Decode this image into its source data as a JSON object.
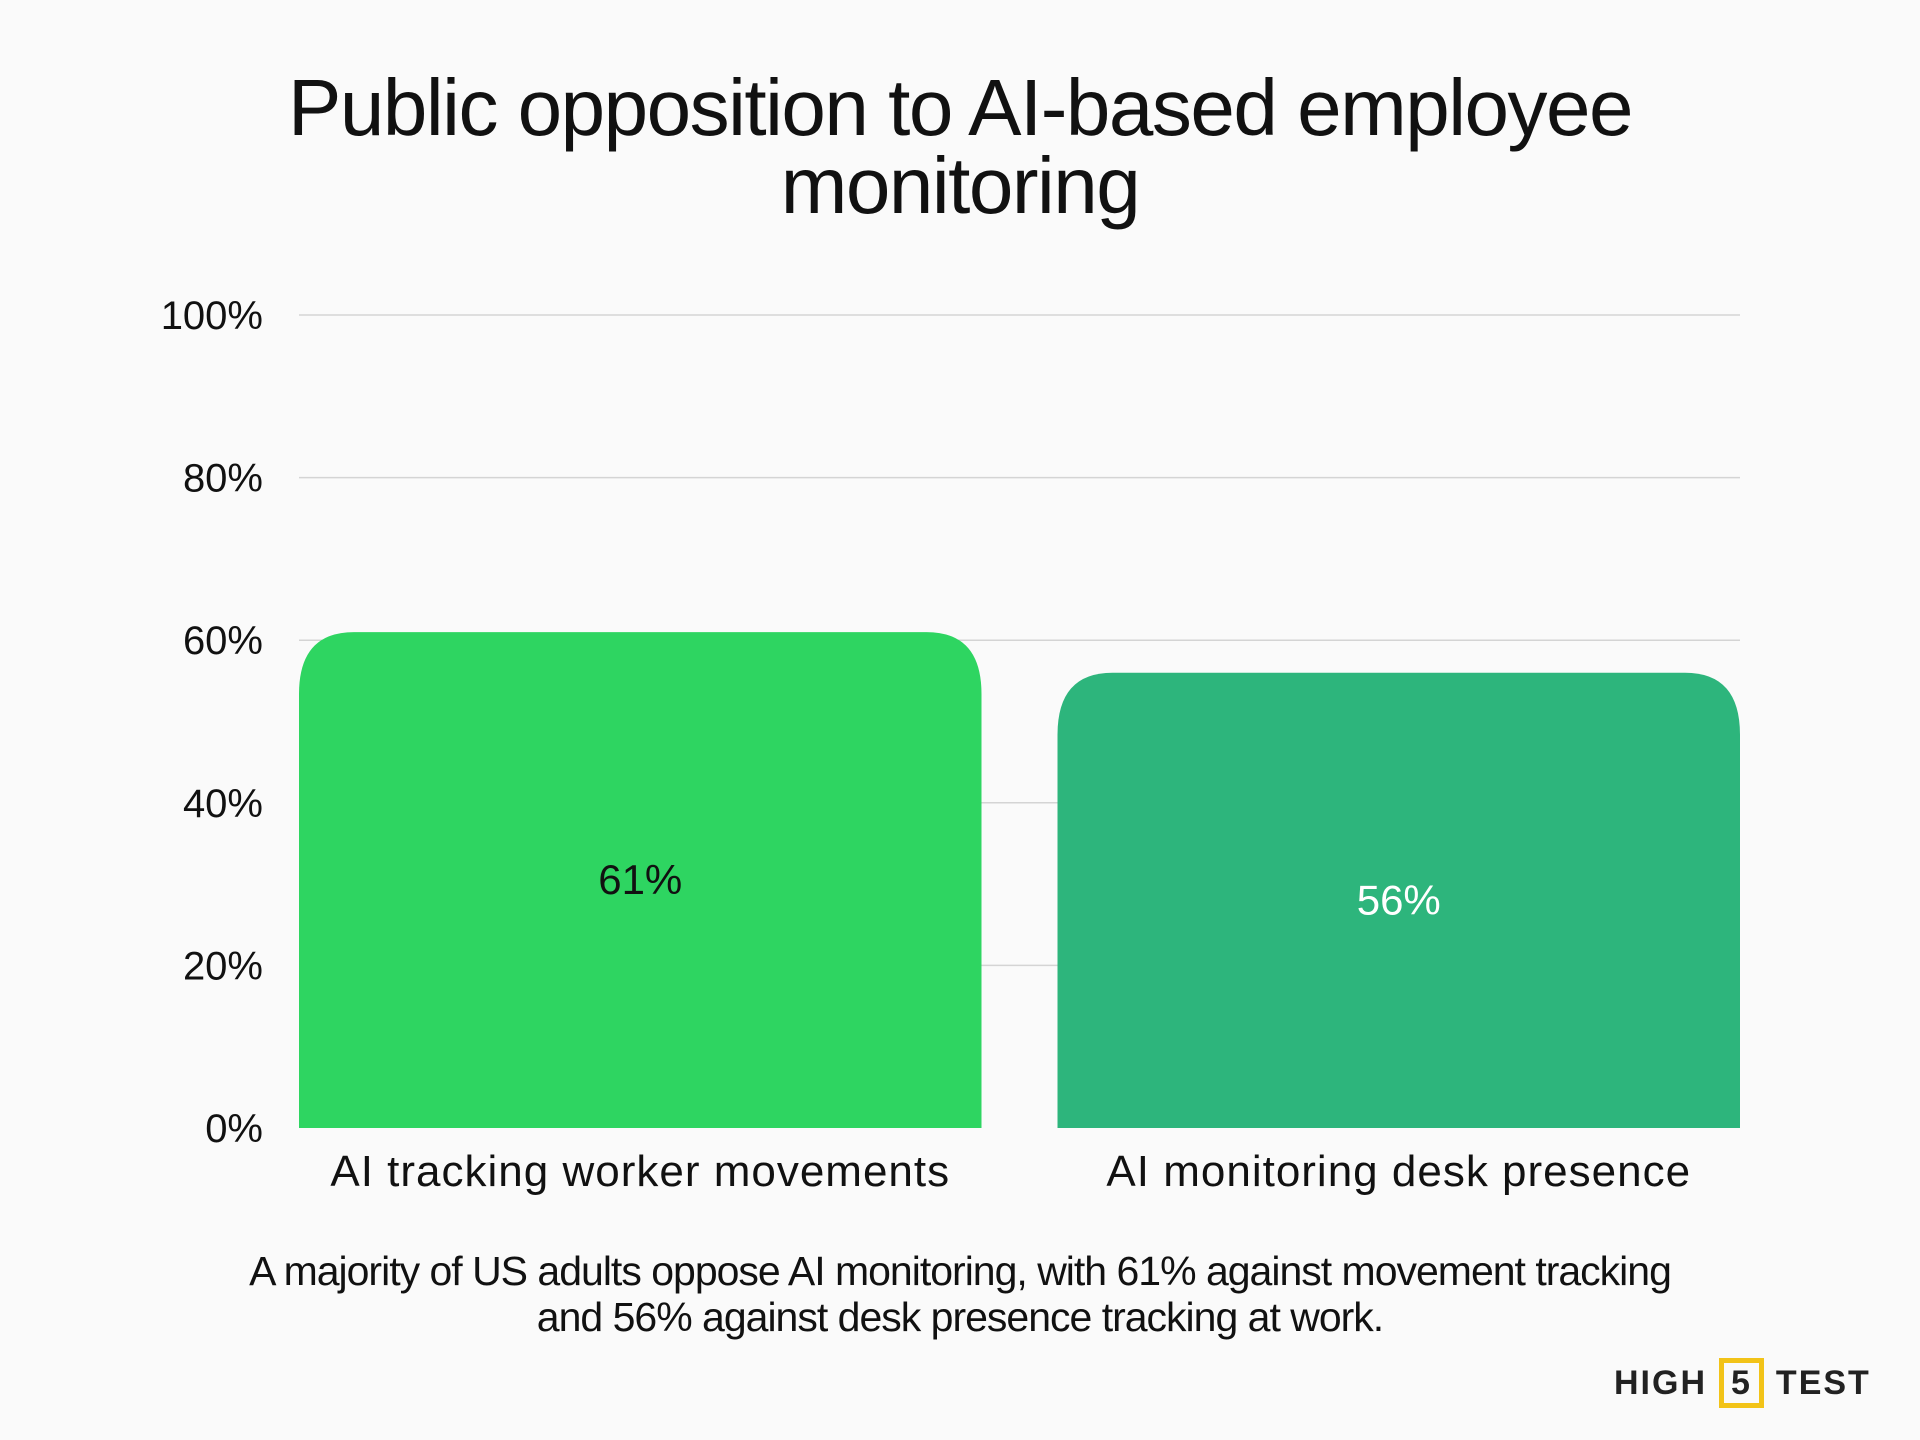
{
  "title_lines": [
    "Public opposition to AI-based employee",
    "monitoring"
  ],
  "subtitle_lines": [
    "A majority of US adults oppose AI monitoring, with 61% against movement tracking",
    "and 56% against desk presence tracking at work."
  ],
  "logo": {
    "left": "HIGH",
    "middle": "5",
    "right": "TEST"
  },
  "colors": {
    "bar1": "#2ed561",
    "bar2": "#2db57c",
    "grid": "#d4d4d4",
    "logo_accent": "#f2c318"
  },
  "chart_data": {
    "type": "bar",
    "title": "Public opposition to AI-based employee monitoring",
    "categories": [
      "AI tracking worker movements",
      "AI monitoring desk presence"
    ],
    "values": [
      61,
      56
    ],
    "data_labels": [
      "61%",
      "56%"
    ],
    "ylim": [
      0,
      100
    ],
    "yticks": [
      0,
      20,
      40,
      60,
      80,
      100
    ],
    "ytick_labels": [
      "0%",
      "20%",
      "40%",
      "60%",
      "80%",
      "100%"
    ],
    "xlabel": "",
    "ylabel": "",
    "grid": true,
    "legend": "none"
  }
}
